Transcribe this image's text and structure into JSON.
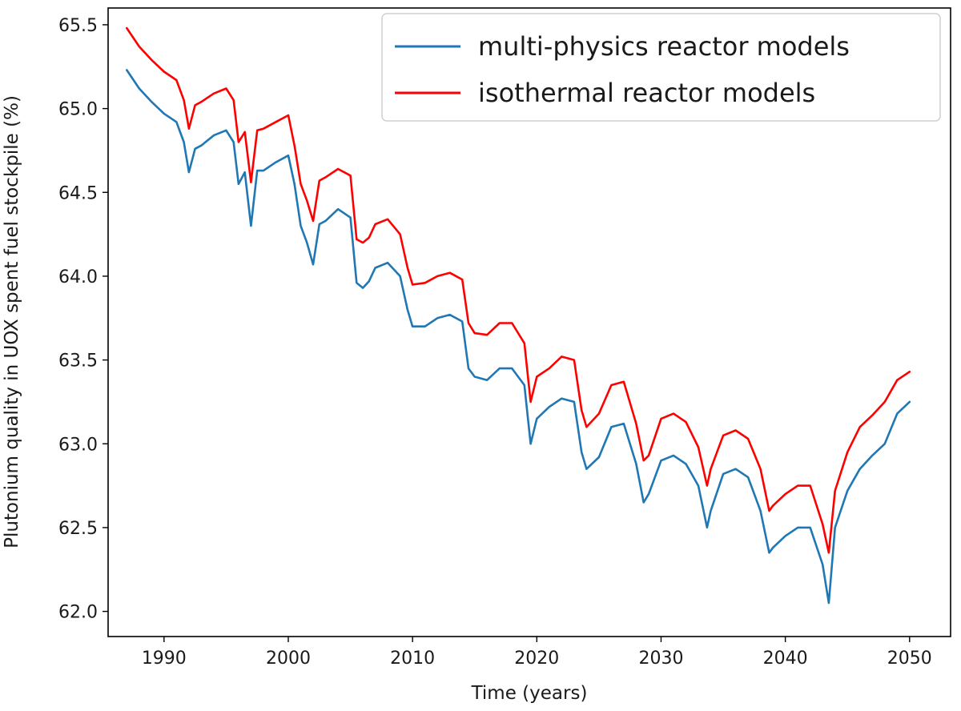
{
  "chart_data": {
    "type": "line",
    "title": "",
    "xlabel": "Time (years)",
    "ylabel": "Plutonium quality in UOX spent fuel stockpile (%)",
    "xlim": [
      1985.5,
      2053.3
    ],
    "ylim": [
      61.85,
      65.6
    ],
    "xticks": [
      1990,
      2000,
      2010,
      2020,
      2030,
      2040,
      2050
    ],
    "yticks": [
      62.0,
      62.5,
      63.0,
      63.5,
      64.0,
      64.5,
      65.0,
      65.5
    ],
    "ytick_labels": [
      "62.0",
      "62.5",
      "63.0",
      "63.5",
      "64.0",
      "64.5",
      "65.0",
      "65.5"
    ],
    "grid": false,
    "legend_position": "top-right",
    "x": [
      1987.0,
      1988.0,
      1989.0,
      1990.0,
      1991.0,
      1991.6,
      1992.0,
      1992.5,
      1993.0,
      1994.0,
      1995.0,
      1995.6,
      1996.0,
      1996.5,
      1997.0,
      1997.5,
      1998.0,
      1999.0,
      2000.0,
      2000.5,
      2001.0,
      2001.5,
      2002.0,
      2002.5,
      2003.0,
      2004.0,
      2005.0,
      2005.5,
      2006.0,
      2006.5,
      2007.0,
      2008.0,
      2009.0,
      2009.6,
      2010.0,
      2011.0,
      2012.0,
      2013.0,
      2014.0,
      2014.5,
      2015.0,
      2016.0,
      2017.0,
      2018.0,
      2019.0,
      2019.5,
      2020.0,
      2021.0,
      2022.0,
      2023.0,
      2023.6,
      2024.0,
      2025.0,
      2026.0,
      2027.0,
      2028.0,
      2028.6,
      2029.0,
      2030.0,
      2031.0,
      2032.0,
      2033.0,
      2033.7,
      2034.0,
      2035.0,
      2036.0,
      2037.0,
      2038.0,
      2038.7,
      2039.0,
      2040.0,
      2041.0,
      2042.0,
      2043.0,
      2043.5,
      2044.0,
      2045.0,
      2046.0,
      2047.0,
      2048.0,
      2049.0,
      2050.0
    ],
    "series": [
      {
        "name": "multi-physics reactor models",
        "color": "#1f77b4",
        "values": [
          65.23,
          65.12,
          65.04,
          64.97,
          64.92,
          64.8,
          64.62,
          64.76,
          64.78,
          64.84,
          64.87,
          64.8,
          64.55,
          64.62,
          64.3,
          64.63,
          64.63,
          64.68,
          64.72,
          64.55,
          64.3,
          64.2,
          64.07,
          64.31,
          64.33,
          64.4,
          64.35,
          63.96,
          63.93,
          63.97,
          64.05,
          64.08,
          64.0,
          63.8,
          63.7,
          63.7,
          63.75,
          63.77,
          63.73,
          63.45,
          63.4,
          63.38,
          63.45,
          63.45,
          63.35,
          63.0,
          63.15,
          63.22,
          63.27,
          63.25,
          62.95,
          62.85,
          62.92,
          63.1,
          63.12,
          62.88,
          62.65,
          62.7,
          62.9,
          62.93,
          62.88,
          62.75,
          62.5,
          62.6,
          62.82,
          62.85,
          62.8,
          62.6,
          62.35,
          62.38,
          62.45,
          62.5,
          62.5,
          62.28,
          62.05,
          62.5,
          62.72,
          62.85,
          62.93,
          63.0,
          63.18,
          63.25
        ]
      },
      {
        "name": "isothermal reactor models",
        "color": "#ff0000",
        "values": [
          65.48,
          65.37,
          65.29,
          65.22,
          65.17,
          65.05,
          64.88,
          65.02,
          65.04,
          65.09,
          65.12,
          65.05,
          64.8,
          64.86,
          64.56,
          64.87,
          64.88,
          64.92,
          64.96,
          64.78,
          64.55,
          64.45,
          64.33,
          64.57,
          64.59,
          64.64,
          64.6,
          64.22,
          64.2,
          64.23,
          64.31,
          64.34,
          64.25,
          64.05,
          63.95,
          63.96,
          64.0,
          64.02,
          63.98,
          63.72,
          63.66,
          63.65,
          63.72,
          63.72,
          63.6,
          63.25,
          63.4,
          63.45,
          63.52,
          63.5,
          63.2,
          63.1,
          63.18,
          63.35,
          63.37,
          63.12,
          62.9,
          62.93,
          63.15,
          63.18,
          63.13,
          62.98,
          62.75,
          62.85,
          63.05,
          63.08,
          63.03,
          62.85,
          62.6,
          62.63,
          62.7,
          62.75,
          62.75,
          62.52,
          62.35,
          62.72,
          62.95,
          63.1,
          63.17,
          63.25,
          63.38,
          63.43
        ]
      }
    ]
  }
}
